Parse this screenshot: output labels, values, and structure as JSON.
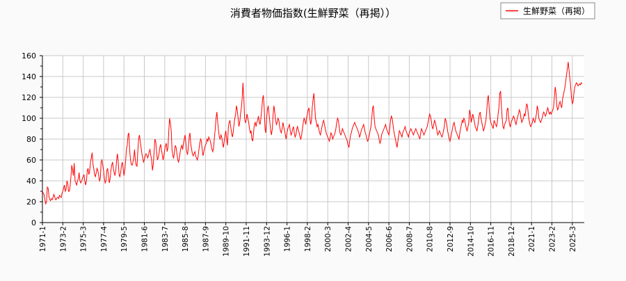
{
  "chart_data": {
    "type": "line",
    "title": "消費者物価指数(生鮮野菜（再掲））",
    "xlabel": "",
    "ylabel": "",
    "ylim": [
      0,
      160
    ],
    "yticks": [
      "0",
      "20",
      "40",
      "60",
      "80",
      "100",
      "120",
      "140",
      "160"
    ],
    "xticks": [
      "1971-1",
      "1973-2",
      "1975-3",
      "1977-4",
      "1979-5",
      "1981-6",
      "1983-7",
      "1985-8",
      "1987-9",
      "1989-10",
      "1991-11",
      "1993-12",
      "1996-1",
      "1998-2",
      "2000-3",
      "2002-4",
      "2004-5",
      "2006-6",
      "2008-7",
      "2010-8",
      "2012-9",
      "2014-10",
      "2016-11",
      "2018-12",
      "2021-1",
      "2023-2",
      "2025-3"
    ],
    "grid": true,
    "legend_position": "top-right",
    "start_month": "1971-1",
    "frequency": "monthly",
    "series": [
      {
        "name": "生鮮野菜（再掲）",
        "color": "#ff0000",
        "values": [
          30,
          28,
          27,
          22,
          18,
          20,
          34,
          33,
          25,
          22,
          21,
          23,
          22,
          24,
          27,
          25,
          22,
          22,
          24,
          24,
          23,
          26,
          25,
          24,
          28,
          30,
          33,
          36,
          30,
          32,
          40,
          38,
          30,
          30,
          35,
          44,
          55,
          50,
          45,
          57,
          40,
          38,
          36,
          40,
          42,
          48,
          40,
          38,
          40,
          42,
          44,
          46,
          40,
          36,
          40,
          50,
          52,
          46,
          50,
          58,
          62,
          67,
          56,
          52,
          46,
          44,
          48,
          52,
          50,
          45,
          40,
          42,
          58,
          60,
          55,
          50,
          42,
          38,
          40,
          50,
          52,
          45,
          38,
          42,
          50,
          55,
          58,
          52,
          48,
          45,
          50,
          60,
          66,
          58,
          46,
          44,
          48,
          55,
          58,
          52,
          45,
          50,
          58,
          70,
          74,
          84,
          86,
          70,
          60,
          56,
          55,
          58,
          62,
          70,
          60,
          55,
          54,
          68,
          80,
          84,
          78,
          72,
          66,
          62,
          58,
          60,
          64,
          66,
          65,
          62,
          64,
          68,
          70,
          64,
          60,
          50,
          56,
          68,
          80,
          78,
          68,
          60,
          62,
          66,
          72,
          75,
          70,
          65,
          60,
          64,
          70,
          74,
          76,
          68,
          72,
          88,
          100,
          95,
          88,
          70,
          64,
          62,
          68,
          74,
          72,
          66,
          60,
          58,
          62,
          68,
          72,
          74,
          70,
          76,
          80,
          84,
          76,
          68,
          65,
          72,
          82,
          86,
          75,
          70,
          66,
          64,
          66,
          68,
          64,
          62,
          60,
          64,
          70,
          76,
          80,
          78,
          70,
          64,
          68,
          72,
          74,
          76,
          80,
          78,
          82,
          80,
          78,
          74,
          70,
          68,
          72,
          82,
          90,
          100,
          106,
          96,
          88,
          82,
          80,
          84,
          82,
          76,
          72,
          78,
          84,
          88,
          80,
          74,
          90,
          96,
          98,
          92,
          86,
          82,
          86,
          94,
          100,
          104,
          112,
          108,
          100,
          92,
          96,
          104,
          110,
          118,
          134,
          120,
          100,
          96,
          98,
          104,
          100,
          96,
          90,
          86,
          88,
          80,
          78,
          86,
          94,
          96,
          92,
          96,
          98,
          102,
          96,
          94,
          100,
          108,
          118,
          122,
          110,
          90,
          86,
          100,
          108,
          112,
          104,
          96,
          88,
          84,
          90,
          104,
          112,
          106,
          98,
          94,
          96,
          100,
          98,
          92,
          88,
          86,
          90,
          96,
          92,
          88,
          84,
          80,
          86,
          90,
          92,
          94,
          88,
          84,
          86,
          90,
          92,
          86,
          82,
          84,
          90,
          92,
          88,
          86,
          82,
          80,
          84,
          90,
          96,
          100,
          98,
          94,
          100,
          104,
          108,
          110,
          100,
          94,
          98,
          110,
          118,
          124,
          112,
          100,
          96,
          92,
          94,
          90,
          86,
          84,
          88,
          92,
          96,
          98,
          94,
          90,
          86,
          84,
          82,
          80,
          78,
          82,
          86,
          84,
          80,
          82,
          84,
          86,
          90,
          96,
          100,
          98,
          92,
          86,
          84,
          86,
          90,
          88,
          86,
          84,
          82,
          80,
          78,
          74,
          72,
          78,
          84,
          86,
          90,
          92,
          94,
          96,
          94,
          92,
          90,
          88,
          86,
          82,
          84,
          88,
          90,
          92,
          94,
          90,
          86,
          84,
          80,
          78,
          80,
          84,
          88,
          92,
          100,
          110,
          112,
          100,
          92,
          90,
          88,
          86,
          84,
          80,
          76,
          78,
          84,
          86,
          88,
          90,
          92,
          94,
          90,
          88,
          86,
          84,
          90,
          98,
          102,
          100,
          94,
          88,
          84,
          80,
          76,
          72,
          78,
          84,
          88,
          86,
          84,
          82,
          86,
          88,
          90,
          92,
          88,
          86,
          84,
          82,
          86,
          88,
          90,
          88,
          86,
          84,
          86,
          88,
          90,
          88,
          86,
          84,
          82,
          80,
          86,
          90,
          88,
          86,
          84,
          86,
          88,
          90,
          92,
          96,
          100,
          104,
          102,
          98,
          92,
          90,
          94,
          98,
          96,
          92,
          88,
          84,
          86,
          88,
          86,
          84,
          82,
          84,
          88,
          92,
          100,
          98,
          94,
          88,
          84,
          80,
          78,
          82,
          86,
          90,
          94,
          96,
          92,
          88,
          86,
          84,
          82,
          80,
          86,
          90,
          94,
          98,
          96,
          100,
          98,
          94,
          90,
          88,
          92,
          96,
          108,
          104,
          96,
          100,
          104,
          100,
          96,
          92,
          90,
          88,
          92,
          98,
          104,
          106,
          100,
          96,
          92,
          88,
          90,
          94,
          98,
          106,
          118,
          122,
          110,
          100,
          96,
          94,
          92,
          90,
          98,
          96,
          94,
          92,
          96,
          104,
          110,
          124,
          126,
          112,
          100,
          92,
          90,
          94,
          96,
          98,
          108,
          110,
          100,
          94,
          92,
          96,
          98,
          100,
          102,
          100,
          96,
          94,
          98,
          102,
          104,
          108,
          106,
          100,
          96,
          98,
          100,
          104,
          102,
          108,
          114,
          112,
          104,
          98,
          94,
          92,
          94,
          96,
          100,
          98,
          96,
          100,
          104,
          112,
          108,
          100,
          98,
          96,
          98,
          100,
          104,
          106,
          104,
          102,
          104,
          108,
          110,
          106,
          104,
          106,
          104,
          106,
          108,
          110,
          120,
          130,
          124,
          112,
          108,
          110,
          114,
          116,
          112,
          110,
          118,
          122,
          126,
          130,
          136,
          142,
          148,
          154,
          146,
          138,
          130,
          120,
          114,
          116,
          124,
          130,
          132,
          134,
          133,
          131,
          132,
          133,
          132,
          134,
          133
        ]
      }
    ]
  }
}
